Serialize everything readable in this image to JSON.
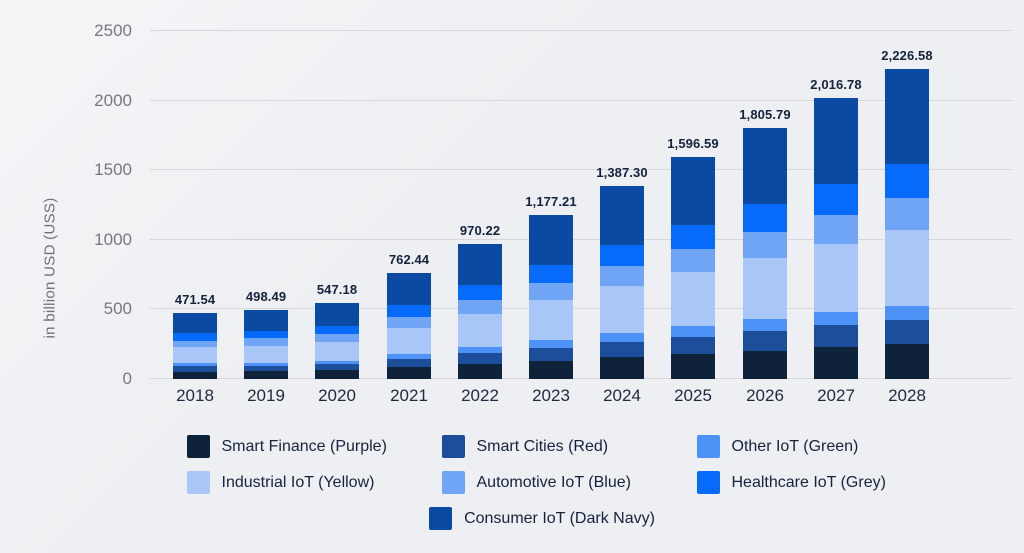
{
  "chart_data": {
    "type": "bar",
    "stacked": true,
    "title": "",
    "xlabel": "",
    "ylabel": "in billion USD (USS)",
    "ylim": [
      0,
      2500
    ],
    "yticks": [
      "0",
      "500",
      "1000",
      "1500",
      "2000",
      "2500"
    ],
    "ytick_values": [
      0,
      500,
      1000,
      1500,
      2000,
      2500
    ],
    "grid": "horizontal",
    "legend_position": "bottom",
    "categories": [
      "2018",
      "2019",
      "2020",
      "2021",
      "2022",
      "2023",
      "2024",
      "2025",
      "2026",
      "2027",
      "2028"
    ],
    "totals": [
      471.54,
      498.49,
      547.18,
      762.44,
      970.22,
      1177.21,
      1387.3,
      1596.59,
      1805.79,
      2016.78,
      2226.58
    ],
    "totals_display": [
      "471.54",
      "498.49",
      "547.18",
      "762.44",
      "970.22",
      "1,177.21",
      "1,387.30",
      "1,596.59",
      "1,805.79",
      "2,016.78",
      "2,226.58"
    ],
    "series": [
      {
        "name": "Smart Finance (Purple)",
        "color": "#0e2239",
        "values": [
          53.3,
          56.3,
          61.8,
          86.2,
          109.6,
          133.0,
          156.8,
          180.4,
          204.1,
          227.9,
          251.6
        ]
      },
      {
        "name": "Smart Cities (Red)",
        "color": "#1d4e9c",
        "values": [
          36.8,
          38.9,
          42.7,
          59.5,
          75.7,
          91.8,
          108.2,
          124.5,
          140.9,
          157.3,
          173.7
        ]
      },
      {
        "name": "Other IoT (Green)",
        "color": "#4d93f7",
        "values": [
          21.7,
          22.9,
          25.2,
          35.1,
          44.6,
          54.2,
          63.8,
          73.4,
          83.1,
          92.8,
          102.4
        ]
      },
      {
        "name": "Industrial IoT (Yellow)",
        "color": "#a9c6f8",
        "values": [
          115.1,
          121.6,
          133.5,
          186.0,
          236.7,
          287.2,
          338.5,
          389.6,
          440.6,
          492.1,
          543.3
        ]
      },
      {
        "name": "Automotive IoT (Blue)",
        "color": "#70a4f4",
        "values": [
          49.0,
          51.8,
          56.9,
          79.3,
          100.9,
          122.4,
          144.3,
          166.0,
          187.8,
          209.7,
          231.6
        ]
      },
      {
        "name": "Healthcare IoT (Grey)",
        "color": "#066afa",
        "values": [
          51.9,
          54.8,
          60.2,
          83.9,
          106.7,
          129.5,
          152.6,
          175.6,
          198.6,
          221.8,
          244.9
        ]
      },
      {
        "name": "Consumer IoT (Dark Navy)",
        "color": "#0b4aa3",
        "values": [
          143.8,
          152.0,
          166.9,
          232.5,
          295.9,
          359.1,
          423.1,
          487.0,
          550.8,
          615.1,
          679.1
        ]
      }
    ],
    "series_values_note": "Per-segment values estimated from bar pixel heights; only the stack totals are labeled in the chart.",
    "legend_rows": [
      [
        0,
        1,
        2
      ],
      [
        3,
        4,
        5
      ],
      [
        6
      ]
    ]
  },
  "colors": {
    "background": "#eef0f3",
    "gridline": "#d5d7da",
    "tick_text": "#75797f",
    "label_text": "#16233c"
  }
}
